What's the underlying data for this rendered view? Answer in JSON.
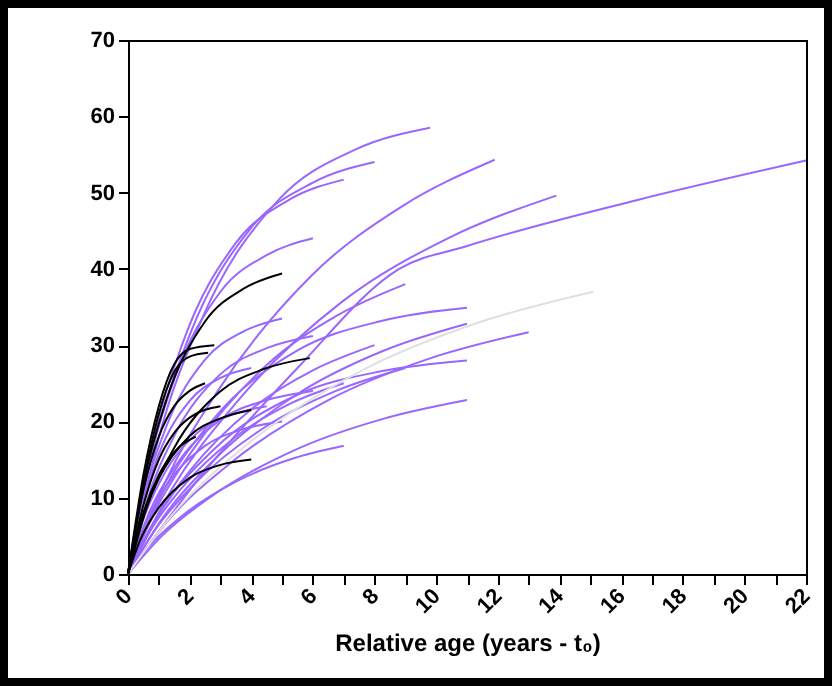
{
  "chart_data": {
    "type": "line",
    "xlabel": "Relative age (years - t₀)",
    "xlim": [
      0,
      22
    ],
    "ylim": [
      0,
      70
    ],
    "xticks": [
      0,
      {
        "value": 1,
        "label": null
      },
      2,
      {
        "value": 3,
        "label": null
      },
      4,
      {
        "value": 5,
        "label": null
      },
      6,
      {
        "value": 7,
        "label": null
      },
      8,
      {
        "value": 9,
        "label": null
      },
      10,
      {
        "value": 11,
        "label": null
      },
      12,
      {
        "value": 13,
        "label": null
      },
      14,
      {
        "value": 15,
        "label": null
      },
      16,
      {
        "value": 17,
        "label": null
      },
      18,
      {
        "value": 19,
        "label": null
      },
      20,
      {
        "value": 21,
        "label": null
      },
      22
    ],
    "yticks": [
      0,
      10,
      20,
      30,
      40,
      50,
      60,
      70
    ],
    "grid": false,
    "marker": "none",
    "line_style": "solid",
    "series": [
      {
        "color": "#9966ff",
        "x": [
          0,
          0.98,
          2.45,
          4.9,
          7.35,
          9.8
        ],
        "values": [
          0,
          17.6,
          33.9,
          49.1,
          55.6,
          58.5
        ]
      },
      {
        "color": "#9966ff",
        "x": [
          0,
          0.8,
          2,
          4,
          6,
          8
        ],
        "values": [
          0,
          16.2,
          31.3,
          45.4,
          51.3,
          54
        ]
      },
      {
        "color": "#9966ff",
        "x": [
          0,
          0.7,
          1.75,
          3.5,
          5.25,
          7
        ],
        "values": [
          0,
          15.5,
          30,
          43.4,
          49.1,
          51.7
        ]
      },
      {
        "color": "#9966ff",
        "x": [
          0,
          1.19,
          2.98,
          5.95,
          8.93,
          11.9
        ],
        "values": [
          0,
          11.9,
          24.4,
          39.1,
          48.3,
          54.3
        ]
      },
      {
        "color": "#9966ff",
        "x": [
          0,
          1.39,
          3.48,
          6.95,
          10.43,
          13.9
        ],
        "values": [
          0,
          10.9,
          22.3,
          35.7,
          44.1,
          49.6
        ]
      },
      {
        "color": "#9966ff",
        "x": [
          0,
          2.2,
          5.5,
          8.8,
          11,
          16.5,
          22
        ],
        "values": [
          0,
          12,
          27,
          40,
          43,
          49,
          54.2
        ]
      },
      {
        "color": "#9966ff",
        "x": [
          0,
          1.1,
          2.75,
          5.5,
          8.25,
          11
        ],
        "values": [
          0,
          10.5,
          20.2,
          29.3,
          33.2,
          34.9
        ]
      },
      {
        "color": "#9966ff",
        "x": [
          0,
          1.1,
          2.75,
          5.5,
          8.25,
          11
        ],
        "values": [
          0,
          7.2,
          14.8,
          23.6,
          29.2,
          32.8
        ]
      },
      {
        "color": "#9966ff",
        "x": [
          0,
          1.3,
          3.25,
          6.5,
          9.75,
          13
        ],
        "values": [
          0,
          7,
          14.3,
          22.8,
          28.2,
          31.7
        ]
      },
      {
        "color": "#9966ff",
        "x": [
          0,
          1.1,
          2.75,
          5.5,
          8.25,
          11
        ],
        "values": [
          0,
          8.4,
          16.2,
          23.5,
          26.6,
          28
        ]
      },
      {
        "color": "#9966ff",
        "x": [
          0,
          1.1,
          2.75,
          5.5,
          8.25,
          11
        ],
        "values": [
          0,
          5,
          10.3,
          16.4,
          20.3,
          22.8
        ]
      },
      {
        "color": "#9966ff",
        "x": [
          0,
          0.7,
          1.75,
          3.5,
          5.25,
          7
        ],
        "values": [
          0,
          3.7,
          7.6,
          12.1,
          15,
          16.8
        ]
      },
      {
        "color": "#9966ff",
        "x": [
          0,
          0.6,
          1.5,
          3,
          4.5,
          6
        ],
        "values": [
          0,
          7.2,
          13.9,
          20.2,
          22.8,
          24
        ]
      },
      {
        "color": "#9966ff",
        "x": [
          0,
          0.6,
          1.5,
          3,
          4.5,
          6
        ],
        "values": [
          0,
          9.4,
          18.1,
          26.2,
          29.6,
          31.2
        ]
      },
      {
        "color": "#9966ff",
        "x": [
          0,
          0.5,
          1.25,
          2.5,
          3.75,
          5
        ],
        "values": [
          0,
          10,
          19.4,
          28.1,
          31.8,
          33.5
        ]
      },
      {
        "color": "#9966ff",
        "x": [
          0,
          0.7,
          1.75,
          3.5,
          5.25,
          7
        ],
        "values": [
          0,
          5.5,
          11.3,
          18,
          22.3,
          25
        ]
      },
      {
        "color": "#9966ff",
        "x": [
          0,
          0.8,
          2,
          4,
          6,
          8
        ],
        "values": [
          0,
          6.6,
          13.5,
          21.6,
          26.7,
          30
        ]
      },
      {
        "color": "#9966ff",
        "x": [
          0,
          0.9,
          2.25,
          4.5,
          6.75,
          9
        ],
        "values": [
          0,
          5.9,
          12.2,
          19.4,
          24,
          27
        ]
      },
      {
        "color": "#9966ff",
        "x": [
          0,
          0.5,
          1.25,
          2.5,
          3.75,
          5
        ],
        "values": [
          0,
          6,
          11.6,
          16.8,
          19,
          20
        ]
      },
      {
        "color": "#9966ff",
        "x": [
          0,
          0.4,
          1,
          2,
          3,
          4
        ],
        "values": [
          0,
          8.1,
          15.7,
          22.7,
          25.7,
          27
        ]
      },
      {
        "color": "#9966ff",
        "x": [
          0,
          0.6,
          1.5,
          3,
          4.5,
          6
        ],
        "values": [
          0,
          13.2,
          25.5,
          37,
          41.8,
          44
        ]
      },
      {
        "color": "#9966ff",
        "x": [
          0,
          0.9,
          2.25,
          4.5,
          6.75,
          9
        ],
        "values": [
          0,
          8.4,
          17.1,
          27.4,
          33.8,
          38
        ]
      },
      {
        "color": "#9966ff",
        "x": [
          0,
          0.45,
          1.13,
          2.25,
          3.38,
          4.5
        ],
        "values": [
          0,
          6.6,
          12.8,
          18.5,
          20.9,
          22
        ]
      },
      {
        "color": "#e0e0e0",
        "x": [
          0,
          1.51,
          3.78,
          7.55,
          11.33,
          15.1
        ],
        "values": [
          0,
          8.1,
          16.7,
          26.6,
          32.9,
          37
        ]
      },
      {
        "color": "#000000",
        "x": [
          0,
          0.5,
          1.25,
          2.5,
          3.75,
          5
        ],
        "values": [
          0,
          11.8,
          22.9,
          33.1,
          37.4,
          39.4
        ]
      },
      {
        "color": "#000000",
        "x": [
          0,
          0.5,
          1,
          1.5,
          2,
          2.8
        ],
        "values": [
          0,
          13,
          22,
          27.5,
          29.5,
          30
        ]
      },
      {
        "color": "#000000",
        "x": [
          0,
          0.5,
          1,
          1.5,
          2,
          2.6
        ],
        "values": [
          0,
          12,
          21,
          26.5,
          28.5,
          29
        ]
      },
      {
        "color": "#000000",
        "x": [
          0,
          0.59,
          1.48,
          2.95,
          4.43,
          5.9
        ],
        "values": [
          0,
          8.5,
          16.4,
          23.8,
          26.9,
          28.3
        ]
      },
      {
        "color": "#000000",
        "x": [
          0,
          0.4,
          1,
          2,
          3,
          4
        ],
        "values": [
          0,
          4.5,
          8.7,
          12.6,
          14.3,
          15
        ]
      },
      {
        "color": "#000000",
        "x": [
          0,
          0.5,
          1,
          1.5,
          2,
          2.5
        ],
        "values": [
          0,
          11,
          18,
          22,
          24,
          25
        ]
      },
      {
        "color": "#000000",
        "x": [
          0,
          0.4,
          1,
          2,
          3,
          4
        ],
        "values": [
          0,
          6.5,
          12.5,
          18.1,
          20.4,
          21.5
        ]
      },
      {
        "color": "#000000",
        "x": [
          0,
          0.5,
          1,
          1.5,
          2,
          3
        ],
        "values": [
          0,
          9,
          15,
          18.5,
          20.5,
          22
        ]
      },
      {
        "color": "#000000",
        "x": [
          0,
          0.5,
          1,
          1.5,
          2.2
        ],
        "values": [
          0,
          8,
          13,
          16,
          18
        ]
      }
    ]
  }
}
